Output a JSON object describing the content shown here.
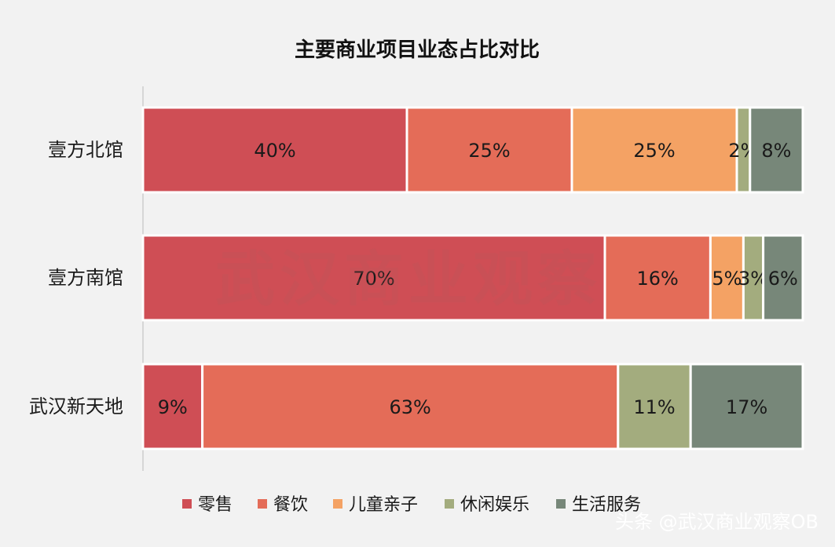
{
  "chart_data": {
    "type": "bar",
    "orientation": "horizontal",
    "stacked": "percent",
    "title": "主要商业项目业态占比对比",
    "categories": [
      "壹方北馆",
      "壹方南馆",
      "武汉新天地"
    ],
    "series": [
      {
        "name": "零售",
        "color": "#cf4e55",
        "values": [
          40,
          70,
          9
        ],
        "labels": [
          "40%",
          "70%",
          "9%"
        ]
      },
      {
        "name": "餐饮",
        "color": "#e46c58",
        "values": [
          25,
          16,
          63
        ],
        "labels": [
          "25%",
          "16%",
          "63%"
        ]
      },
      {
        "name": "儿童亲子",
        "color": "#f4a264",
        "values": [
          25,
          5,
          0
        ],
        "labels": [
          "25%",
          "5%",
          ""
        ]
      },
      {
        "name": "休闲娱乐",
        "color": "#a3ac7e",
        "values": [
          2,
          3,
          11
        ],
        "labels": [
          "2%",
          "3%",
          "11%"
        ]
      },
      {
        "name": "生活服务",
        "color": "#778779",
        "values": [
          8,
          6,
          17
        ],
        "labels": [
          "8%",
          "6%",
          "17%"
        ]
      }
    ],
    "xlim": [
      0,
      100
    ],
    "grid": false,
    "legend": "bottom"
  },
  "watermark": "武汉商业观察",
  "credit": "头条 @武汉商业观察OB"
}
